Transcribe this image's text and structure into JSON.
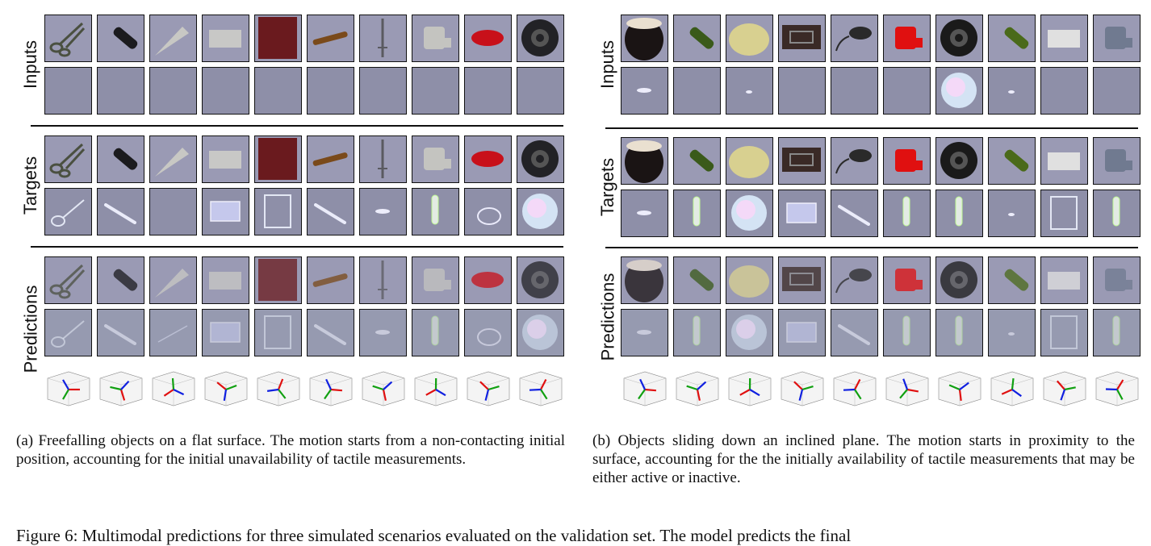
{
  "panel_a": {
    "row_labels": {
      "inputs": "Inputs",
      "targets": "Targets",
      "predictions": "Predictions"
    },
    "caption": "(a) Freefalling objects on a flat surface. The motion starts from a non-contacting initial position, accounting for the initial unavailability of tactile measurements.",
    "objects": [
      {
        "shape": "scissors",
        "color": "#4a5040"
      },
      {
        "shape": "bottle",
        "color": "#1b1b1e"
      },
      {
        "shape": "cone",
        "color": "#c8c8c4"
      },
      {
        "shape": "block",
        "color": "#c8c8c6"
      },
      {
        "shape": "square",
        "color": "#6a1a1e"
      },
      {
        "shape": "stick",
        "color": "#7a4a1a"
      },
      {
        "shape": "fork",
        "color": "#5a5a60"
      },
      {
        "shape": "toy",
        "color": "#c4c4c0"
      },
      {
        "shape": "ellipse",
        "color": "#c8101a"
      },
      {
        "shape": "wheel",
        "color": "#222226"
      }
    ],
    "tactile_targets": [
      "loop",
      "line",
      "none",
      "plate",
      "frame",
      "line",
      "small",
      "bar",
      "ring",
      "disk"
    ],
    "tactile_preds": [
      "loop",
      "line",
      "faint",
      "plate",
      "frame",
      "line",
      "small",
      "bar",
      "ring",
      "disk"
    ]
  },
  "panel_b": {
    "row_labels": {
      "inputs": "Inputs",
      "targets": "Targets",
      "predictions": "Predictions"
    },
    "caption": "(b) Objects sliding down an inclined plane. The motion starts in proximity to the surface, accounting for the the initially availability of tactile measurements that may be either active or inactive.",
    "objects": [
      {
        "shape": "jar",
        "color": "#1a1414"
      },
      {
        "shape": "bottle",
        "color": "#3a5a1a"
      },
      {
        "shape": "dome",
        "color": "#d8d090"
      },
      {
        "shape": "box",
        "color": "#3a2a26"
      },
      {
        "shape": "mouse",
        "color": "#2a2a2a"
      },
      {
        "shape": "toy",
        "color": "#e01010"
      },
      {
        "shape": "wheel",
        "color": "#1a1a1a"
      },
      {
        "shape": "bottle",
        "color": "#4a6a1a"
      },
      {
        "shape": "block",
        "color": "#e0e0e0"
      },
      {
        "shape": "toy",
        "color": "#707a90"
      }
    ],
    "tactile_inputs": [
      "small",
      "none",
      "tiny",
      "none",
      "none",
      "none",
      "disk",
      "tiny",
      "none",
      "none"
    ],
    "tactile_targets": [
      "small",
      "bar",
      "disk",
      "plate",
      "line",
      "bar",
      "bar",
      "tiny",
      "frame",
      "bar"
    ],
    "tactile_preds": [
      "small",
      "bar",
      "disk",
      "plate",
      "line",
      "bar",
      "bar",
      "tiny",
      "frame",
      "bar"
    ]
  },
  "figure_caption": "Figure 6: Multimodal predictions for three simulated scenarios evaluated on the validation set. The model predicts the final"
}
